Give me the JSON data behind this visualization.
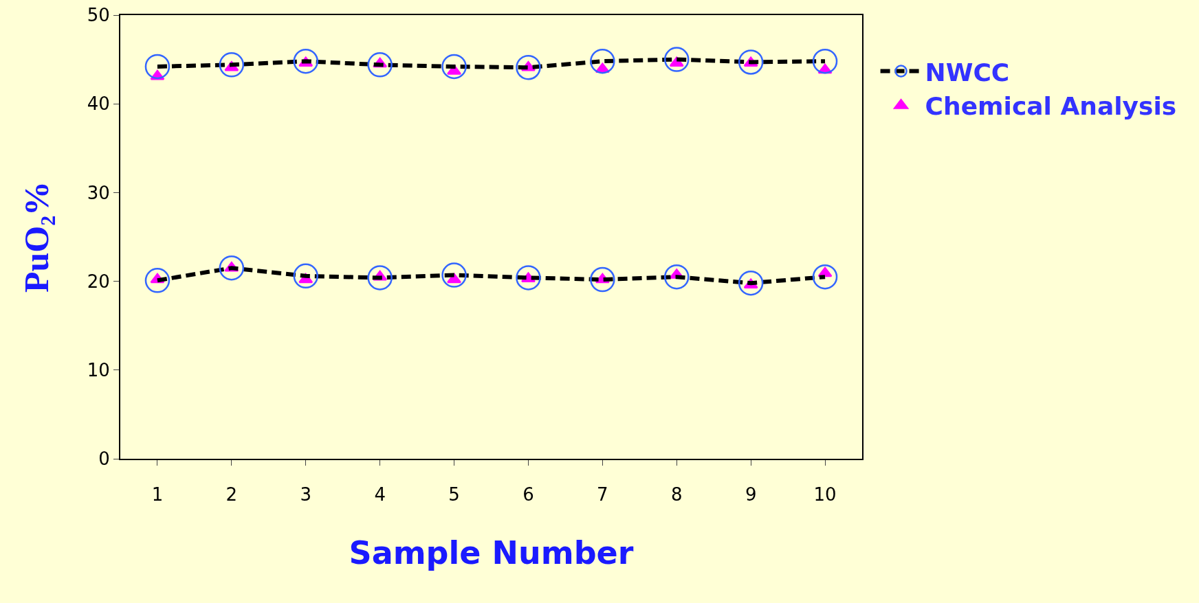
{
  "chart_data": {
    "type": "line",
    "xlabel": "Sample Number",
    "ylabel": "PuO₂%",
    "categories": [
      "1",
      "2",
      "3",
      "4",
      "5",
      "6",
      "7",
      "8",
      "9",
      "10"
    ],
    "series": [
      {
        "name": "NWCC",
        "color": "#3366ff",
        "marker": "circle",
        "line_style": "dashed",
        "values": [
          44.2,
          44.4,
          44.8,
          44.4,
          44.2,
          44.1,
          44.8,
          45.0,
          44.7,
          44.8
        ]
      },
      {
        "color": "#3366ff",
        "marker": "circle",
        "line_style": "dashed",
        "values": [
          20.1,
          21.5,
          20.6,
          20.4,
          20.7,
          20.4,
          20.2,
          20.5,
          19.8,
          20.5
        ]
      },
      {
        "name": "Chemical Analysis",
        "type": "scatter",
        "color": "#ff00ff",
        "marker": "triangle",
        "values": [
          43.1,
          44.1,
          44.6,
          44.5,
          43.7,
          44.1,
          43.9,
          44.6,
          44.6,
          43.8
        ]
      },
      {
        "type": "scatter",
        "color": "#ff00ff",
        "marker": "triangle",
        "values": [
          20.2,
          21.5,
          20.2,
          20.5,
          20.2,
          20.3,
          20.2,
          20.7,
          19.6,
          20.9
        ]
      }
    ],
    "ylim": [
      0,
      50
    ],
    "yticks": [
      0,
      10,
      20,
      30,
      40,
      50
    ],
    "grid": false,
    "legend": "top right"
  }
}
